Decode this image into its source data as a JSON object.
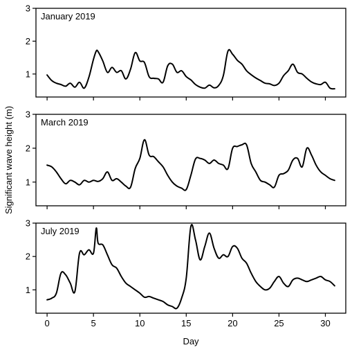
{
  "chart_data": {
    "type": "line",
    "ylabel": "Significant wave height (m)",
    "xlabel": "Day",
    "xlim": [
      -1.2,
      32.2
    ],
    "ylim": [
      0.3,
      3.0
    ],
    "xticks": [
      0,
      5,
      10,
      15,
      20,
      25,
      30
    ],
    "yticks": [
      1,
      2,
      3
    ],
    "panels": [
      {
        "title": "January 2019",
        "x": [
          0,
          0.5,
          1,
          1.5,
          2,
          2.5,
          3,
          3.5,
          4,
          4.5,
          5,
          5.3,
          5.5,
          6,
          6.5,
          7,
          7.5,
          8,
          8.5,
          9,
          9.5,
          10,
          10.5,
          11,
          11.5,
          12,
          12.5,
          13,
          13.5,
          14,
          14.5,
          15,
          15.5,
          16,
          16.5,
          17,
          17.5,
          18,
          18.5,
          19,
          19.5,
          20,
          20.5,
          21,
          21.5,
          22,
          22.5,
          23,
          23.5,
          24,
          24.5,
          25,
          25.5,
          26,
          26.5,
          27,
          27.5,
          28,
          28.5,
          29,
          29.5,
          30,
          30.5,
          31
        ],
        "y": [
          0.97,
          0.8,
          0.72,
          0.68,
          0.63,
          0.72,
          0.6,
          0.75,
          0.57,
          0.9,
          1.45,
          1.7,
          1.68,
          1.4,
          1.05,
          1.2,
          1.05,
          1.1,
          0.85,
          1.15,
          1.65,
          1.4,
          1.35,
          0.92,
          0.87,
          0.85,
          0.75,
          1.25,
          1.3,
          1.05,
          1.1,
          0.92,
          0.82,
          0.68,
          0.6,
          0.57,
          0.66,
          0.58,
          0.65,
          0.95,
          1.7,
          1.6,
          1.42,
          1.3,
          1.1,
          0.98,
          0.88,
          0.8,
          0.72,
          0.7,
          0.65,
          0.72,
          0.95,
          1.1,
          1.3,
          1.05,
          1.0,
          0.87,
          0.76,
          0.7,
          0.68,
          0.75,
          0.57,
          0.55
        ]
      },
      {
        "title": "March 2019",
        "x": [
          0,
          0.5,
          1,
          1.5,
          2,
          2.5,
          3,
          3.5,
          4,
          4.5,
          5,
          5.5,
          6,
          6.5,
          7,
          7.5,
          8,
          8.5,
          9,
          9.5,
          10,
          10.5,
          11,
          11.5,
          12,
          12.5,
          13,
          13.5,
          14,
          14.5,
          15,
          15.5,
          16,
          16.5,
          17,
          17.5,
          18,
          18.5,
          19,
          19.5,
          20,
          20.5,
          21,
          21.5,
          22,
          22.5,
          23,
          23.5,
          24,
          24.5,
          25,
          25.5,
          26,
          26.5,
          27,
          27.5,
          28,
          28.5,
          29,
          29.5,
          30,
          30.5,
          31
        ],
        "y": [
          1.5,
          1.45,
          1.3,
          1.1,
          0.95,
          1.05,
          1.0,
          0.92,
          1.05,
          1.0,
          1.05,
          1.02,
          1.1,
          1.3,
          1.05,
          1.1,
          1.0,
          0.88,
          0.85,
          1.4,
          1.7,
          2.25,
          1.8,
          1.75,
          1.6,
          1.45,
          1.2,
          1.0,
          0.88,
          0.82,
          0.78,
          1.2,
          1.68,
          1.7,
          1.65,
          1.55,
          1.65,
          1.55,
          1.5,
          1.4,
          2.0,
          2.05,
          2.1,
          2.1,
          1.55,
          1.3,
          1.05,
          1.0,
          0.92,
          0.85,
          1.2,
          1.25,
          1.35,
          1.65,
          1.7,
          1.45,
          2.0,
          1.8,
          1.5,
          1.3,
          1.2,
          1.1,
          1.05
        ]
      },
      {
        "title": "July 2019",
        "x": [
          0,
          0.5,
          1,
          1.5,
          2,
          2.5,
          3,
          3.5,
          4,
          4.5,
          5,
          5.3,
          5.5,
          6,
          6.5,
          7,
          7.5,
          8,
          8.5,
          9,
          9.5,
          10,
          10.5,
          11,
          11.5,
          12,
          12.5,
          13,
          13.5,
          14,
          14.5,
          15,
          15.5,
          16,
          16.5,
          17,
          17.5,
          18,
          18.5,
          19,
          19.5,
          20,
          20.5,
          21,
          21.5,
          22,
          22.5,
          23,
          23.5,
          24,
          24.5,
          25,
          25.5,
          26,
          26.5,
          27,
          27.5,
          28,
          28.5,
          29,
          29.5,
          30,
          30.5,
          31
        ],
        "y": [
          0.7,
          0.75,
          0.9,
          1.5,
          1.45,
          1.2,
          0.95,
          2.1,
          2.05,
          2.2,
          2.1,
          2.85,
          2.4,
          2.35,
          2.05,
          1.75,
          1.65,
          1.4,
          1.2,
          1.1,
          1.0,
          0.9,
          0.78,
          0.8,
          0.75,
          0.7,
          0.65,
          0.55,
          0.5,
          0.45,
          0.75,
          1.35,
          2.9,
          2.5,
          1.9,
          2.3,
          2.7,
          2.25,
          1.95,
          2.05,
          2.0,
          2.3,
          2.25,
          1.95,
          1.8,
          1.5,
          1.25,
          1.1,
          1.0,
          1.05,
          1.25,
          1.4,
          1.2,
          1.1,
          1.3,
          1.35,
          1.3,
          1.25,
          1.3,
          1.35,
          1.4,
          1.3,
          1.25,
          1.12
        ]
      }
    ]
  }
}
